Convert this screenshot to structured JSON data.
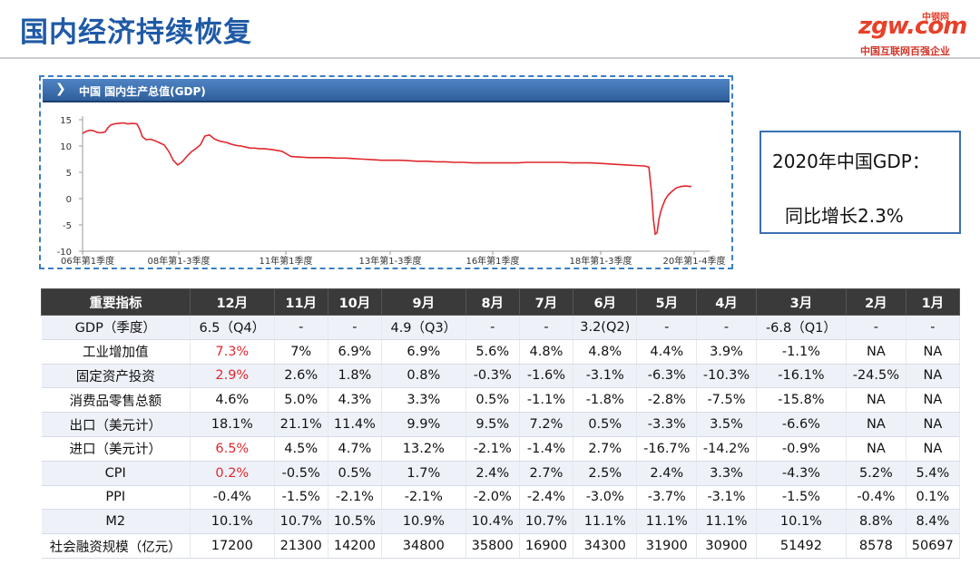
{
  "page": {
    "title": "国内经济持续恢复"
  },
  "logo": {
    "main": "zgw.com",
    "cn": "中钢网",
    "sub": "中国互联网百强企业"
  },
  "chart_panel": {
    "header": "中国  国内生产总值(GDP)"
  },
  "chart_data": {
    "type": "line",
    "title": "中国  国内生产总值(GDP)",
    "xlabel": "",
    "ylabel": "",
    "ylim": [
      -10,
      15
    ],
    "yticks": [
      15,
      10,
      5,
      0,
      -5,
      -10
    ],
    "xticks": [
      "06年第1季度",
      "08年第1-3季度",
      "11年第1季度",
      "13年第1-3季度",
      "16年第1季度",
      "18年第1-3季度",
      "20年第1-4季度"
    ],
    "series": [
      {
        "color": "#e0282e",
        "x": [
          0,
          4,
          8,
          12,
          16,
          20,
          25,
          28,
          31,
          35,
          40,
          45,
          50,
          55,
          60,
          63,
          66,
          70,
          75,
          80,
          85,
          90,
          95,
          100,
          105,
          110,
          115,
          120,
          125,
          130,
          135,
          140,
          145,
          150,
          155,
          160,
          165,
          170,
          175,
          180,
          185,
          190,
          195,
          200,
          210,
          220,
          230,
          240,
          250,
          260,
          270,
          280,
          290,
          300,
          310,
          320,
          330,
          340,
          350,
          360,
          370,
          380,
          390,
          400,
          410,
          420,
          430,
          440,
          450,
          460,
          470,
          480,
          490,
          500,
          510,
          520,
          530,
          540,
          550,
          560,
          570,
          580,
          590,
          600,
          610,
          620,
          625,
          628,
          630,
          632,
          634,
          636,
          638,
          640,
          643,
          646,
          650,
          655,
          660,
          665,
          672
        ],
        "values": [
          12.4,
          12.8,
          13.0,
          12.9,
          12.6,
          12.5,
          12.7,
          13.5,
          14.0,
          14.2,
          14.3,
          14.4,
          14.2,
          14.3,
          14.2,
          13.2,
          11.8,
          11.2,
          11.3,
          11.0,
          10.6,
          10.2,
          9.0,
          7.3,
          6.4,
          7.0,
          8.0,
          8.9,
          9.5,
          10.2,
          11.9,
          12.1,
          11.4,
          11.0,
          10.8,
          10.6,
          10.3,
          10.1,
          10.0,
          9.8,
          9.6,
          9.6,
          9.5,
          9.5,
          9.3,
          9.0,
          8.0,
          7.9,
          7.8,
          7.8,
          7.8,
          7.7,
          7.7,
          7.6,
          7.5,
          7.4,
          7.3,
          7.3,
          7.3,
          7.2,
          7.1,
          7.1,
          7.0,
          7.0,
          6.9,
          6.9,
          6.8,
          6.8,
          6.8,
          6.8,
          6.8,
          6.8,
          6.9,
          6.9,
          6.9,
          6.9,
          6.9,
          6.8,
          6.8,
          6.8,
          6.7,
          6.6,
          6.5,
          6.4,
          6.3,
          6.2,
          6.0,
          1.0,
          -4.0,
          -6.8,
          -6.5,
          -4.0,
          -2.5,
          -1.5,
          -0.2,
          0.6,
          1.3,
          2.0,
          2.3,
          2.4,
          2.3
        ]
      }
    ],
    "grid": false,
    "legend": "none"
  },
  "callout": {
    "line1": "2020年中国GDP：",
    "line2": "同比增长2.3%"
  },
  "table": {
    "headers": [
      "重要指标",
      "12月",
      "11月",
      "10月",
      "9月",
      "8月",
      "7月",
      "6月",
      "5月",
      "4月",
      "3月",
      "2月",
      "1月"
    ],
    "rows": [
      {
        "label": "GDP（季度）",
        "values": [
          "6.5（Q4）",
          "-",
          "-",
          "4.9（Q3）",
          "-",
          "-",
          "3.2(Q2)",
          "-",
          "-",
          "-6.8（Q1）",
          "-",
          "-"
        ]
      },
      {
        "label": "工业增加值",
        "values": [
          "7.3%",
          "7%",
          "6.9%",
          "6.9%",
          "5.6%",
          "4.8%",
          "4.8%",
          "4.4%",
          "3.9%",
          "-1.1%",
          "NA",
          "NA"
        ]
      },
      {
        "label": "固定资产投资",
        "values": [
          "2.9%",
          "2.6%",
          "1.8%",
          "0.8%",
          "-0.3%",
          "-1.6%",
          "-3.1%",
          "-6.3%",
          "-10.3%",
          "-16.1%",
          "-24.5%",
          "NA"
        ]
      },
      {
        "label": "消费品零售总额",
        "values": [
          "4.6%",
          "5.0%",
          "4.3%",
          "3.3%",
          "0.5%",
          "-1.1%",
          "-1.8%",
          "-2.8%",
          "-7.5%",
          "-15.8%",
          "NA",
          "NA"
        ]
      },
      {
        "label": "出口（美元计）",
        "values": [
          "18.1%",
          "21.1%",
          "11.4%",
          "9.9%",
          "9.5%",
          "7.2%",
          "0.5%",
          "-3.3%",
          "3.5%",
          "-6.6%",
          "NA",
          "NA"
        ]
      },
      {
        "label": "进口（美元计）",
        "values": [
          "6.5%",
          "4.5%",
          "4.7%",
          "13.2%",
          "-2.1%",
          "-1.4%",
          "2.7%",
          "-16.7%",
          "-14.2%",
          "-0.9%",
          "NA",
          "NA"
        ]
      },
      {
        "label": "CPI",
        "values": [
          "0.2%",
          "-0.5%",
          "0.5%",
          "1.7%",
          "2.4%",
          "2.7%",
          "2.5%",
          "2.4%",
          "3.3%",
          "-4.3%",
          "5.2%",
          "5.4%"
        ]
      },
      {
        "label": "PPI",
        "values": [
          "-0.4%",
          "-1.5%",
          "-2.1%",
          "-2.1%",
          "-2.0%",
          "-2.4%",
          "-3.0%",
          "-3.7%",
          "-3.1%",
          "-1.5%",
          "-0.4%",
          "0.1%"
        ]
      },
      {
        "label": "M2",
        "values": [
          "10.1%",
          "10.7%",
          "10.5%",
          "10.9%",
          "10.4%",
          "10.7%",
          "11.1%",
          "11.1%",
          "11.1%",
          "10.1%",
          "8.8%",
          "8.4%"
        ]
      },
      {
        "label": "社会融资规模（亿元）",
        "values": [
          "17200",
          "21300",
          "14200",
          "34800",
          "35800",
          "16900",
          "34300",
          "31900",
          "30900",
          "51492",
          "8578",
          "50697"
        ]
      }
    ],
    "highlight_color": "#e0282e"
  }
}
